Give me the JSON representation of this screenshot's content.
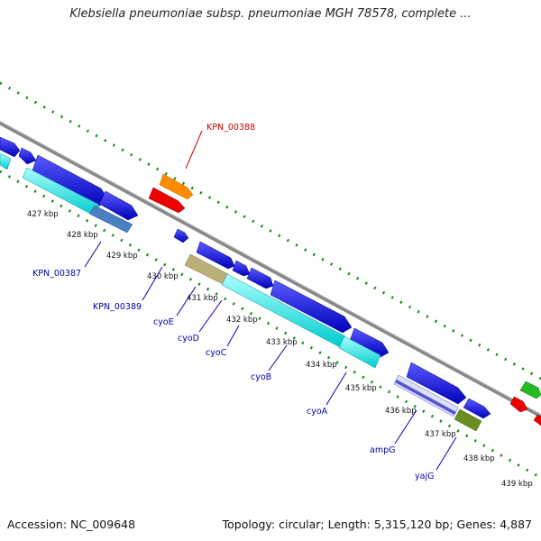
{
  "title": "Klebsiella pneumoniae subsp. pneumoniae MGH 78578, complete ...",
  "footer": {
    "accession": "Accession: NC_009648",
    "topology": "Topology: circular; Length: 5,315,120 bp; Genes: 4,887"
  },
  "ticks": [
    "427 kbp",
    "428 kbp",
    "429 kbp",
    "430 kbp",
    "431 kbp",
    "432 kbp",
    "433 kbp",
    "434 kbp",
    "435 kbp",
    "436 kbp",
    "437 kbp",
    "438 kbp",
    "439 kbp"
  ],
  "gene_labels": [
    "KPN_00388",
    "KPN_00387",
    "KPN_00389",
    "cyoE",
    "cyoD",
    "cyoC",
    "cyoB",
    "cyoA",
    "ampG",
    "yajG"
  ],
  "colors": {
    "backbone": "#808080",
    "cds": "#0000ee",
    "cyan": "#00eeee",
    "orange": "#ff8c00",
    "red": "#ee0000",
    "green": "#22bb22",
    "khaki": "#bbb077",
    "olive": "#6b8e23",
    "steel": "#4a7fc0",
    "ticks": "#118811",
    "label_blue": "#0000aa",
    "label_red": "#cc0000"
  }
}
